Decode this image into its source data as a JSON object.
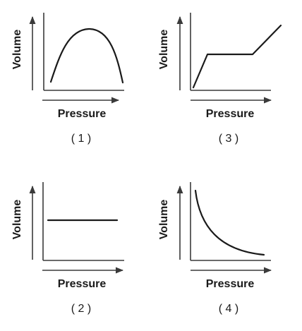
{
  "graphs": [
    {
      "id": "1",
      "number_label": "( 1 )",
      "xlabel": "Pressure",
      "ylabel": "Volume",
      "shape": "rise-then-fall"
    },
    {
      "id": "3",
      "number_label": "( 3 )",
      "xlabel": "Pressure",
      "ylabel": "Volume",
      "shape": "rise-plateau-rise"
    },
    {
      "id": "2",
      "number_label": "( 2 )",
      "xlabel": "Pressure",
      "ylabel": "Volume",
      "shape": "constant"
    },
    {
      "id": "4",
      "number_label": "( 4 )",
      "xlabel": "Pressure",
      "ylabel": "Volume",
      "shape": "inverse-decay"
    }
  ]
}
